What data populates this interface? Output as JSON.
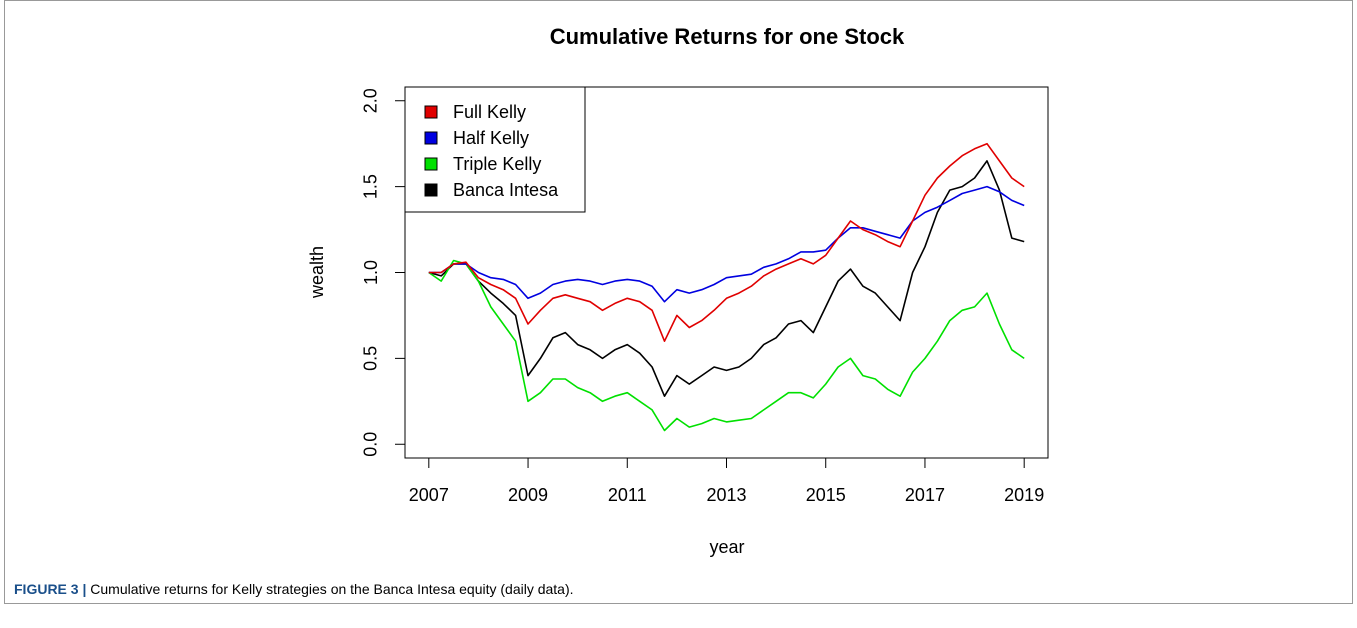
{
  "chart_data": {
    "type": "line",
    "title": "Cumulative Returns for one Stock",
    "xlabel": "year",
    "ylabel": "wealth",
    "caption_label": "FIGURE 3 |",
    "caption": "Cumulative returns for Kelly strategies on the Banca Intesa equity (daily data).",
    "legend": "top-left",
    "xlim": [
      2006.52,
      2019.48
    ],
    "ylim": [
      -0.08,
      2.08
    ],
    "xticks": [
      2007,
      2009,
      2011,
      2013,
      2015,
      2017,
      2019
    ],
    "yticks": [
      {
        "value": 0,
        "label": "0.0"
      },
      0.5,
      {
        "value": 1,
        "label": "1.0"
      },
      1.5,
      {
        "value": 2,
        "label": "2.0"
      }
    ],
    "x": [
      2007,
      2007.25,
      2007.5,
      2007.75,
      2008,
      2008.25,
      2008.5,
      2008.75,
      2009,
      2009.25,
      2009.5,
      2009.75,
      2010,
      2010.25,
      2010.5,
      2010.75,
      2011,
      2011.25,
      2011.5,
      2011.75,
      2012,
      2012.25,
      2012.5,
      2012.75,
      2013,
      2013.25,
      2013.5,
      2013.75,
      2014,
      2014.25,
      2014.5,
      2014.75,
      2015,
      2015.25,
      2015.5,
      2015.75,
      2016,
      2016.25,
      2016.5,
      2016.75,
      2017,
      2017.25,
      2017.5,
      2017.75,
      2018,
      2018.25,
      2018.5,
      2018.75,
      2019
    ],
    "series": [
      {
        "name": "Full Kelly",
        "color": "#e00000",
        "values": [
          1.0,
          1.0,
          1.05,
          1.06,
          0.97,
          0.93,
          0.9,
          0.85,
          0.7,
          0.78,
          0.85,
          0.87,
          0.85,
          0.83,
          0.78,
          0.82,
          0.85,
          0.83,
          0.78,
          0.6,
          0.75,
          0.68,
          0.72,
          0.78,
          0.85,
          0.88,
          0.92,
          0.98,
          1.02,
          1.05,
          1.08,
          1.05,
          1.1,
          1.2,
          1.3,
          1.25,
          1.22,
          1.18,
          1.15,
          1.3,
          1.45,
          1.55,
          1.62,
          1.68,
          1.72,
          1.75,
          1.65,
          1.55,
          1.5
        ]
      },
      {
        "name": "Half Kelly",
        "color": "#0000e0",
        "values": [
          1.0,
          1.0,
          1.05,
          1.05,
          1.0,
          0.97,
          0.96,
          0.93,
          0.85,
          0.88,
          0.93,
          0.95,
          0.96,
          0.95,
          0.93,
          0.95,
          0.96,
          0.95,
          0.92,
          0.83,
          0.9,
          0.88,
          0.9,
          0.93,
          0.97,
          0.98,
          0.99,
          1.03,
          1.05,
          1.08,
          1.12,
          1.12,
          1.13,
          1.2,
          1.26,
          1.26,
          1.24,
          1.22,
          1.2,
          1.3,
          1.35,
          1.38,
          1.42,
          1.46,
          1.48,
          1.5,
          1.47,
          1.42,
          1.39
        ]
      },
      {
        "name": "Triple Kelly",
        "color": "#00e000",
        "values": [
          1.0,
          0.95,
          1.07,
          1.05,
          0.95,
          0.8,
          0.7,
          0.6,
          0.25,
          0.3,
          0.38,
          0.38,
          0.33,
          0.3,
          0.25,
          0.28,
          0.3,
          0.25,
          0.2,
          0.08,
          0.15,
          0.1,
          0.12,
          0.15,
          0.13,
          0.14,
          0.15,
          0.2,
          0.25,
          0.3,
          0.3,
          0.27,
          0.35,
          0.45,
          0.5,
          0.4,
          0.38,
          0.32,
          0.28,
          0.42,
          0.5,
          0.6,
          0.72,
          0.78,
          0.8,
          0.88,
          0.7,
          0.55,
          0.5
        ]
      },
      {
        "name": "Banca Intesa",
        "color": "#000000",
        "values": [
          1.0,
          0.98,
          1.05,
          1.05,
          0.95,
          0.88,
          0.82,
          0.75,
          0.4,
          0.5,
          0.62,
          0.65,
          0.58,
          0.55,
          0.5,
          0.55,
          0.58,
          0.53,
          0.45,
          0.28,
          0.4,
          0.35,
          0.4,
          0.45,
          0.43,
          0.45,
          0.5,
          0.58,
          0.62,
          0.7,
          0.72,
          0.65,
          0.8,
          0.95,
          1.02,
          0.92,
          0.88,
          0.8,
          0.72,
          1.0,
          1.15,
          1.35,
          1.48,
          1.5,
          1.55,
          1.65,
          1.48,
          1.2,
          1.18
        ]
      }
    ]
  }
}
